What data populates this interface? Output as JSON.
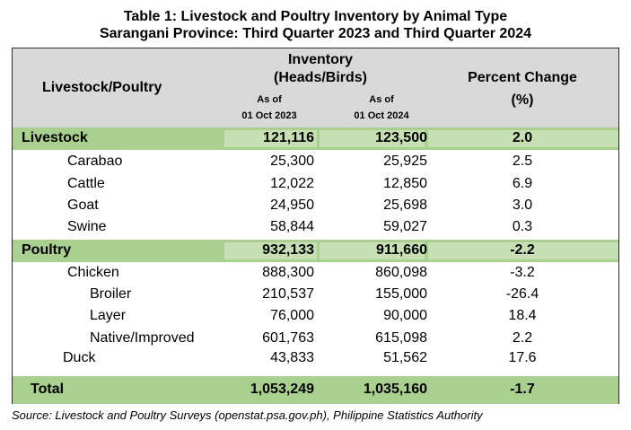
{
  "title_line1": "Table 1: Livestock and Poultry Inventory by Animal Type",
  "title_line2": "Sarangani Province: Third Quarter 2023 and Third Quarter 2024",
  "header": {
    "col1": "Livestock/Poultry",
    "inventory_line1": "Inventory",
    "inventory_line2": "(Heads/Birds)",
    "asof_2023_line1": "As of",
    "asof_2023_line2": "01 Oct 2023",
    "asof_2024_line1": "As of",
    "asof_2024_line2": "01 Oct 2024",
    "pct_line1": "Percent Change",
    "pct_line2": "(%)"
  },
  "rows": [
    {
      "label": "Livestock",
      "v2023": "121,116",
      "v2024": "123,500",
      "pct": "2.0"
    },
    {
      "label": "Carabao",
      "v2023": "25,300",
      "v2024": "25,925",
      "pct": "2.5"
    },
    {
      "label": "Cattle",
      "v2023": "12,022",
      "v2024": "12,850",
      "pct": "6.9"
    },
    {
      "label": "Goat",
      "v2023": "24,950",
      "v2024": "25,698",
      "pct": "3.0"
    },
    {
      "label": "Swine",
      "v2023": "58,844",
      "v2024": "59,027",
      "pct": "0.3"
    },
    {
      "label": "Poultry",
      "v2023": "932,133",
      "v2024": "911,660",
      "pct": "-2.2"
    },
    {
      "label": "Chicken",
      "v2023": "888,300",
      "v2024": "860,098",
      "pct": "-3.2"
    },
    {
      "label": "Broiler",
      "v2023": "210,537",
      "v2024": "155,000",
      "pct": "-26.4"
    },
    {
      "label": "Layer",
      "v2023": "76,000",
      "v2024": "90,000",
      "pct": "18.4"
    },
    {
      "label": "Native/Improved",
      "v2023": "601,763",
      "v2024": "615,098",
      "pct": "2.2"
    },
    {
      "label": "Duck",
      "v2023": "43,833",
      "v2024": "51,562",
      "pct": "17.6"
    },
    {
      "label": "Total",
      "v2023": "1,053,249",
      "v2024": "1,035,160",
      "pct": "-1.7"
    }
  ],
  "source": "Source: Livestock and Poultry Surveys (openstat.psa.gov.ph), Philippine Statistics Authority",
  "colors": {
    "header_bg": "#d9d9d9",
    "band": "#a9d08e",
    "band_cell": "#c6e0b4"
  }
}
